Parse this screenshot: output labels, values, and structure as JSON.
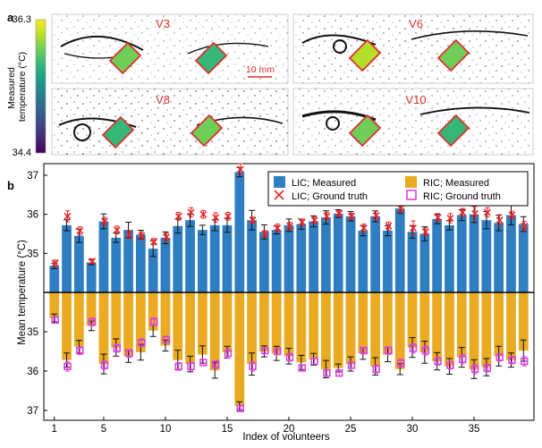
{
  "panel_a": {
    "label": "a",
    "colorbar": {
      "max": "36.3",
      "min": "34.4",
      "title_line1": "Measured",
      "title_line2": "temperature (°C)",
      "stops": [
        "#fde725",
        "#b5de2b",
        "#6ece58",
        "#35b779",
        "#1f9e89",
        "#26828e",
        "#31688e",
        "#3e4989",
        "#482878",
        "#440154"
      ]
    },
    "images": [
      {
        "name": "V3",
        "label": "V3"
      },
      {
        "name": "V6",
        "label": "V6"
      },
      {
        "name": "V8",
        "label": "V8"
      },
      {
        "name": "V10",
        "label": "V10"
      }
    ],
    "scale_bar": "10 mm",
    "label_color": "#e03030",
    "roi_border_color": "#e03030"
  },
  "panel_b": {
    "label": "b",
    "colors": {
      "lic": "#2f7ec1",
      "ric": "#eaaa22",
      "lic_gt": "#e8262c",
      "ric_gt": "#e040e0"
    }
  },
  "chart_data": {
    "type": "bar",
    "title": "",
    "xlabel": "Index of volunteers",
    "ylabel": "Mean temperature (°C)",
    "x": [
      1,
      2,
      3,
      4,
      5,
      6,
      7,
      8,
      9,
      10,
      11,
      12,
      13,
      14,
      15,
      16,
      17,
      18,
      19,
      20,
      21,
      22,
      23,
      24,
      25,
      26,
      27,
      28,
      29,
      30,
      31,
      32,
      33,
      34,
      35,
      36,
      37,
      38,
      39
    ],
    "xticks": [
      1,
      5,
      10,
      15,
      20,
      25,
      30,
      35
    ],
    "yticks_top": [
      "35",
      "36",
      "37"
    ],
    "yticks_bottom": [
      "35",
      "36",
      "37"
    ],
    "baseline": 34,
    "ylim_top": [
      34,
      37.3
    ],
    "ylim_bottom": [
      34,
      37.3
    ],
    "legend": [
      "LIC; Measured",
      "RIC; Measured",
      "LIC; Ground truth",
      "RIC; Ground truth"
    ],
    "legend_position": "top-right",
    "series": [
      {
        "name": "LIC; Measured",
        "values": [
          34.68,
          35.72,
          35.45,
          34.77,
          35.82,
          35.4,
          35.6,
          35.48,
          35.12,
          35.4,
          35.7,
          35.85,
          35.6,
          35.72,
          35.72,
          37.08,
          35.85,
          35.55,
          35.6,
          35.72,
          35.75,
          35.82,
          35.92,
          36.02,
          35.95,
          35.58,
          35.95,
          35.58,
          36.15,
          35.55,
          35.5,
          35.88,
          35.72,
          35.98,
          36.0,
          35.85,
          35.78,
          35.98,
          35.75
        ],
        "errors": [
          0.07,
          0.14,
          0.17,
          0.06,
          0.19,
          0.12,
          0.2,
          0.11,
          0.2,
          0.15,
          0.18,
          0.16,
          0.12,
          0.14,
          0.18,
          0.12,
          0.25,
          0.18,
          0.1,
          0.16,
          0.13,
          0.14,
          0.17,
          0.1,
          0.12,
          0.13,
          0.14,
          0.13,
          0.12,
          0.16,
          0.18,
          0.12,
          0.12,
          0.14,
          0.21,
          0.22,
          0.2,
          0.25,
          0.19
        ]
      },
      {
        "name": "RIC; Measured",
        "values": [
          34.65,
          35.72,
          35.38,
          34.85,
          35.82,
          35.4,
          35.62,
          35.52,
          34.97,
          35.35,
          35.72,
          35.82,
          35.58,
          35.98,
          35.52,
          36.88,
          35.82,
          35.5,
          35.55,
          35.62,
          35.78,
          35.7,
          35.95,
          35.92,
          35.82,
          35.55,
          35.88,
          35.58,
          35.95,
          35.4,
          35.52,
          35.75,
          35.88,
          35.65,
          35.95,
          35.9,
          35.62,
          35.72,
          35.48
        ],
        "errors": [
          0.1,
          0.18,
          0.16,
          0.12,
          0.25,
          0.22,
          0.16,
          0.2,
          0.15,
          0.14,
          0.25,
          0.2,
          0.22,
          0.2,
          0.15,
          0.1,
          0.28,
          0.14,
          0.18,
          0.2,
          0.18,
          0.15,
          0.22,
          0.1,
          0.18,
          0.15,
          0.22,
          0.18,
          0.14,
          0.25,
          0.28,
          0.22,
          0.2,
          0.25,
          0.24,
          0.22,
          0.25,
          0.18,
          0.27
        ]
      },
      {
        "name": "LIC; Ground truth",
        "values": [
          34.75,
          35.95,
          35.58,
          34.8,
          35.82,
          35.6,
          35.48,
          35.45,
          35.3,
          35.42,
          35.95,
          36.05,
          36.0,
          35.92,
          35.95,
          37.15,
          35.85,
          35.5,
          35.65,
          35.7,
          35.8,
          35.85,
          35.95,
          36.02,
          35.95,
          35.65,
          35.97,
          35.7,
          36.15,
          35.65,
          35.55,
          35.92,
          35.9,
          36.05,
          36.02,
          36.05,
          35.85,
          35.98,
          35.7
        ],
        "errors": [
          0.08,
          0.14,
          0.1,
          0.06,
          0.1,
          0.1,
          0.1,
          0.1,
          0.08,
          0.1,
          0.1,
          0.12,
          0.1,
          0.12,
          0.1,
          0.15,
          0.08,
          0.08,
          0.1,
          0.1,
          0.08,
          0.08,
          0.1,
          0.08,
          0.08,
          0.1,
          0.12,
          0.1,
          0.1,
          0.18,
          0.1,
          0.1,
          0.12,
          0.1,
          0.18,
          0.12,
          0.14,
          0.1,
          0.12
        ]
      },
      {
        "name": "RIC; Ground truth",
        "values": [
          34.7,
          35.88,
          35.48,
          34.75,
          35.85,
          35.42,
          35.55,
          35.28,
          34.75,
          35.2,
          35.88,
          35.88,
          35.78,
          35.83,
          35.55,
          36.95,
          35.88,
          35.48,
          35.5,
          35.65,
          35.92,
          35.75,
          36.05,
          36.05,
          35.85,
          35.48,
          35.95,
          35.48,
          35.8,
          35.42,
          35.48,
          35.75,
          35.85,
          35.7,
          35.95,
          35.92,
          35.65,
          35.72,
          35.75
        ],
        "errors": [
          0.08,
          0.12,
          0.1,
          0.1,
          0.1,
          0.1,
          0.1,
          0.1,
          0.1,
          0.08,
          0.1,
          0.1,
          0.08,
          0.1,
          0.12,
          0.06,
          0.12,
          0.08,
          0.08,
          0.1,
          0.08,
          0.08,
          0.08,
          0.08,
          0.08,
          0.06,
          0.1,
          0.1,
          0.1,
          0.12,
          0.12,
          0.1,
          0.1,
          0.12,
          0.12,
          0.1,
          0.1,
          0.1,
          0.12
        ]
      }
    ]
  }
}
